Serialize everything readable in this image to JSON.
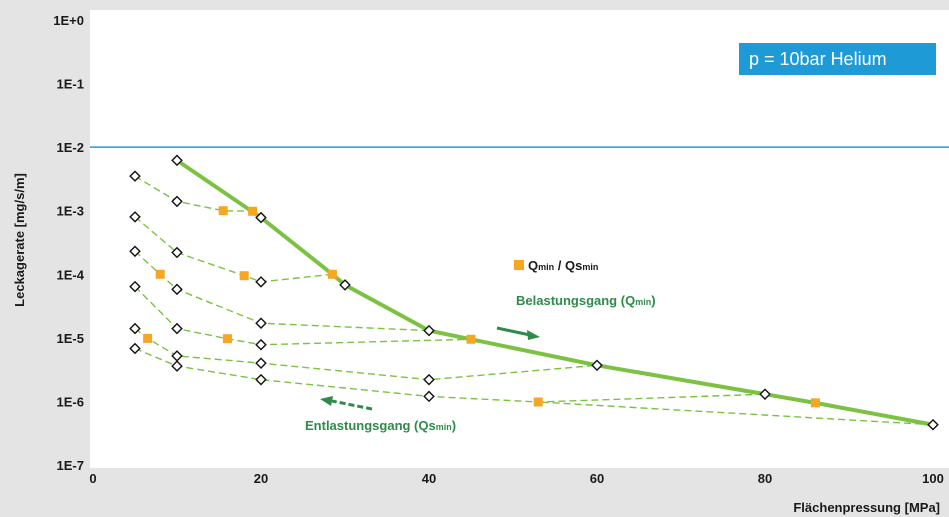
{
  "chart_data": {
    "type": "line",
    "xlabel": "Flächenpressung [MPa]",
    "ylabel": "Leckagerate [mg/s/m]",
    "xlim": [
      0,
      100
    ],
    "ylim": [
      1e-07,
      1
    ],
    "y_scale": "log",
    "x_ticks": [
      "0",
      "20",
      "40",
      "60",
      "80",
      "100"
    ],
    "y_ticks": [
      "1E+0",
      "1E-1",
      "1E-2",
      "1E-3",
      "1E-4",
      "1E-5",
      "1E-6",
      "1E-7"
    ],
    "grid": false,
    "reference_line": {
      "y": 0.01,
      "color": "#1e9bd7"
    },
    "colors": {
      "loading": "#7cc242",
      "unloading": "#7cc242",
      "qmin": "#f5a623",
      "marker_edge": "#111111",
      "reference": "#1e9bd7",
      "annotation": "#2e8b4a"
    },
    "loading_series": {
      "name": "Belastungsgang (Qmin)",
      "points": [
        [
          10,
          0.0062
        ],
        [
          20,
          0.00078
        ],
        [
          28.5,
          0.0001
        ],
        [
          30,
          6.8e-05
        ],
        [
          40,
          1.3e-05
        ],
        [
          45,
          9.5e-06
        ],
        [
          60,
          3.7e-06
        ],
        [
          80,
          1.3e-06
        ],
        [
          86,
          9.5e-07
        ],
        [
          100,
          4.3e-07
        ]
      ]
    },
    "unloading_series": [
      {
        "points": [
          [
            5,
            0.0035
          ],
          [
            10,
            0.0014
          ],
          [
            15.5,
            0.001
          ],
          [
            19,
            0.00098
          ],
          [
            20,
            0.00078
          ]
        ]
      },
      {
        "points": [
          [
            5,
            0.0008
          ],
          [
            10,
            0.00022
          ],
          [
            18,
            9.5e-05
          ],
          [
            20,
            7.6e-05
          ],
          [
            28.5,
            0.0001
          ]
        ]
      },
      {
        "points": [
          [
            5,
            0.00023
          ],
          [
            8,
            0.0001
          ],
          [
            10,
            5.8e-05
          ],
          [
            20,
            1.7e-05
          ],
          [
            40,
            1.3e-05
          ]
        ]
      },
      {
        "points": [
          [
            5,
            6.4e-05
          ],
          [
            10,
            1.4e-05
          ],
          [
            16,
            9.7e-06
          ],
          [
            20,
            7.8e-06
          ],
          [
            45,
            9.5e-06
          ]
        ]
      },
      {
        "points": [
          [
            5,
            1.4e-05
          ],
          [
            6.5,
            9.8e-06
          ],
          [
            10,
            5.2e-06
          ],
          [
            20,
            4e-06
          ],
          [
            40,
            2.2e-06
          ],
          [
            60,
            3.7e-06
          ]
        ]
      },
      {
        "points": [
          [
            5,
            6.8e-06
          ],
          [
            10,
            3.6e-06
          ],
          [
            20,
            2.2e-06
          ],
          [
            40,
            1.2e-06
          ],
          [
            53,
            9.8e-07
          ],
          [
            80,
            1.3e-06
          ]
        ]
      },
      {
        "points": [
          [
            100,
            4.3e-07
          ],
          [
            53,
            9.8e-07
          ]
        ]
      }
    ],
    "qmin_markers": [
      [
        15.5,
        0.001
      ],
      [
        19,
        0.00098
      ],
      [
        8,
        0.0001
      ],
      [
        18,
        9.5e-05
      ],
      [
        28.5,
        0.0001
      ],
      [
        16,
        9.7e-06
      ],
      [
        6.5,
        9.8e-06
      ],
      [
        45,
        9.5e-06
      ],
      [
        53,
        9.8e-07
      ],
      [
        86,
        9.5e-07
      ]
    ],
    "diamond_markers": [
      [
        10,
        0.0062
      ],
      [
        20,
        0.00078
      ],
      [
        30,
        6.8e-05
      ],
      [
        40,
        1.3e-05
      ],
      [
        60,
        3.7e-06
      ],
      [
        80,
        1.3e-06
      ],
      [
        100,
        4.3e-07
      ],
      [
        5,
        0.0035
      ],
      [
        10,
        0.0014
      ],
      [
        5,
        0.0008
      ],
      [
        10,
        0.00022
      ],
      [
        20,
        7.6e-05
      ],
      [
        5,
        0.00023
      ],
      [
        10,
        5.8e-05
      ],
      [
        20,
        1.7e-05
      ],
      [
        5,
        6.4e-05
      ],
      [
        10,
        1.4e-05
      ],
      [
        20,
        7.8e-06
      ],
      [
        5,
        1.4e-05
      ],
      [
        10,
        5.2e-06
      ],
      [
        20,
        4e-06
      ],
      [
        40,
        2.2e-06
      ],
      [
        5,
        6.8e-06
      ],
      [
        10,
        3.6e-06
      ],
      [
        20,
        2.2e-06
      ],
      [
        40,
        1.2e-06
      ]
    ],
    "annotations": {
      "pressure": "p = 10bar Helium",
      "legend_q": "Q",
      "legend_q_sub": "min",
      "legend_sep": " / Qs",
      "legend_qs_sub": "min",
      "loading_label": "Belastungsgang (Q",
      "loading_sub": "min",
      "loading_close": ")",
      "unloading_label": "Entlastungsgang (Qs",
      "unloading_sub": "min",
      "unloading_close": ")"
    }
  }
}
